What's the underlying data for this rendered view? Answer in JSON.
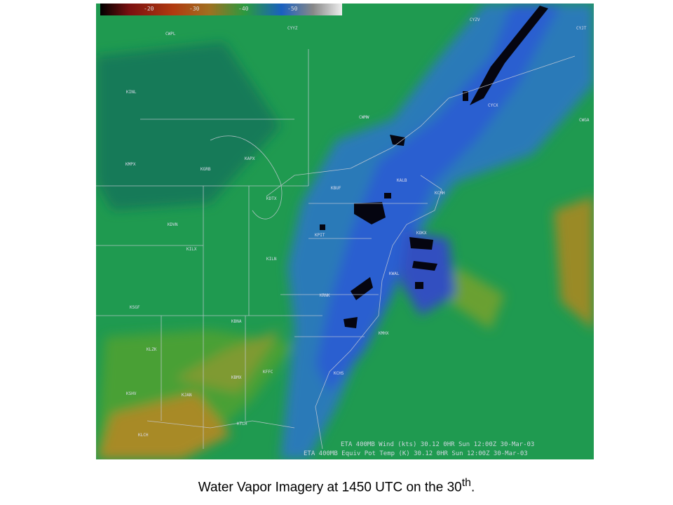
{
  "map": {
    "colorbar_labels": [
      "-20",
      "-30",
      "-40",
      "-50"
    ],
    "stations": [
      "CWPL",
      "CYYZ",
      "CYZV",
      "CYJT",
      "CWGA",
      "KINL",
      "KMPX",
      "KGRB",
      "KAPX",
      "KDTX",
      "KBUF",
      "KALB",
      "KCHH",
      "KOKX",
      "KPIT",
      "KILN",
      "KDVN",
      "KILX",
      "KSGF",
      "KBNA",
      "KLZK",
      "KBMX",
      "KFFC",
      "KSHV",
      "KJAN",
      "KLCH",
      "KTLH",
      "KCHS",
      "KMHX",
      "KWAL",
      "KRNK",
      "CWMW",
      "CYCX"
    ],
    "footer_lines": [
      "ETA 400MB Wind (kts) 30.12   0HR Sun 12:00Z 30-Mar-03",
      "ETA 400MB Equiv Pot Temp (K) 30.12   0HR Sun 12:00Z 30-Mar-03"
    ]
  },
  "caption": {
    "text": "Water Vapor Imagery at 1450 UTC on the 30",
    "sup": "th",
    "end": "."
  }
}
